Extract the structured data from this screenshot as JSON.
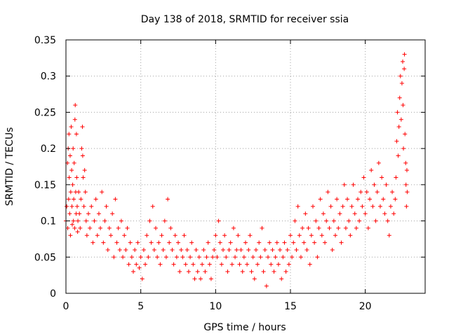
{
  "chart_data": {
    "type": "scatter",
    "title": "Day 138 of 2018, SRMTID for receiver ssia",
    "xlabel": "GPS time / hours",
    "ylabel": "SRMTID / TECUs",
    "xlim": [
      0,
      24
    ],
    "ylim": [
      0,
      0.35
    ],
    "x_ticks": [
      0,
      5,
      10,
      15,
      20
    ],
    "x_tick_labels": [
      "0",
      "5",
      "10",
      "15",
      "20"
    ],
    "y_ticks": [
      0,
      0.05,
      0.1,
      0.15,
      0.2,
      0.25,
      0.3,
      0.35
    ],
    "y_tick_labels": [
      "0",
      "0.05",
      "0.1",
      "0.15",
      "0.2",
      "0.25",
      "0.3",
      "0.35"
    ],
    "grid": true,
    "marker": "+",
    "color": "#ff0000",
    "series": [
      {
        "name": "SRMTID",
        "points": [
          [
            0.0,
            0.1
          ],
          [
            0.05,
            0.12
          ],
          [
            0.1,
            0.18
          ],
          [
            0.12,
            0.09
          ],
          [
            0.15,
            0.2
          ],
          [
            0.18,
            0.13
          ],
          [
            0.2,
            0.22
          ],
          [
            0.22,
            0.16
          ],
          [
            0.25,
            0.11
          ],
          [
            0.28,
            0.19
          ],
          [
            0.3,
            0.08
          ],
          [
            0.32,
            0.14
          ],
          [
            0.35,
            0.23
          ],
          [
            0.38,
            0.17
          ],
          [
            0.4,
            0.12
          ],
          [
            0.42,
            0.095
          ],
          [
            0.45,
            0.15
          ],
          [
            0.48,
            0.2
          ],
          [
            0.5,
            0.1
          ],
          [
            0.52,
            0.13
          ],
          [
            0.55,
            0.18
          ],
          [
            0.58,
            0.09
          ],
          [
            0.6,
            0.24
          ],
          [
            0.62,
            0.26
          ],
          [
            0.65,
            0.14
          ],
          [
            0.68,
            0.11
          ],
          [
            0.7,
            0.22
          ],
          [
            0.72,
            0.16
          ],
          [
            0.75,
            0.12
          ],
          [
            0.78,
            0.085
          ],
          [
            0.8,
            0.1
          ],
          [
            0.85,
            0.14
          ],
          [
            0.9,
            0.11
          ],
          [
            0.95,
            0.09
          ],
          [
            1.0,
            0.13
          ],
          [
            1.05,
            0.2
          ],
          [
            1.1,
            0.23
          ],
          [
            1.12,
            0.19
          ],
          [
            1.15,
            0.16
          ],
          [
            1.2,
            0.12
          ],
          [
            1.25,
            0.17
          ],
          [
            1.3,
            0.14
          ],
          [
            1.35,
            0.1
          ],
          [
            1.4,
            0.08
          ],
          [
            1.5,
            0.11
          ],
          [
            1.6,
            0.09
          ],
          [
            1.7,
            0.12
          ],
          [
            1.8,
            0.07
          ],
          [
            1.9,
            0.1
          ],
          [
            2.0,
            0.13
          ],
          [
            2.1,
            0.08
          ],
          [
            2.2,
            0.11
          ],
          [
            2.3,
            0.09
          ],
          [
            2.4,
            0.14
          ],
          [
            2.5,
            0.07
          ],
          [
            2.6,
            0.1
          ],
          [
            2.7,
            0.12
          ],
          [
            2.8,
            0.06
          ],
          [
            2.9,
            0.09
          ],
          [
            3.0,
            0.08
          ],
          [
            3.1,
            0.11
          ],
          [
            3.2,
            0.05
          ],
          [
            3.3,
            0.13
          ],
          [
            3.4,
            0.07
          ],
          [
            3.5,
            0.09
          ],
          [
            3.6,
            0.06
          ],
          [
            3.7,
            0.1
          ],
          [
            3.8,
            0.05
          ],
          [
            3.9,
            0.08
          ],
          [
            4.0,
            0.06
          ],
          [
            4.1,
            0.09
          ],
          [
            4.2,
            0.04
          ],
          [
            4.3,
            0.07
          ],
          [
            4.4,
            0.05
          ],
          [
            4.5,
            0.03
          ],
          [
            4.6,
            0.06
          ],
          [
            4.7,
            0.04
          ],
          [
            4.8,
            0.07
          ],
          [
            4.9,
            0.035
          ],
          [
            5.0,
            0.05
          ],
          [
            5.1,
            0.02
          ],
          [
            5.2,
            0.06
          ],
          [
            5.3,
            0.04
          ],
          [
            5.4,
            0.08
          ],
          [
            5.5,
            0.05
          ],
          [
            5.6,
            0.1
          ],
          [
            5.7,
            0.07
          ],
          [
            5.8,
            0.12
          ],
          [
            5.9,
            0.06
          ],
          [
            6.0,
            0.09
          ],
          [
            6.1,
            0.05
          ],
          [
            6.2,
            0.07
          ],
          [
            6.3,
            0.04
          ],
          [
            6.4,
            0.08
          ],
          [
            6.5,
            0.06
          ],
          [
            6.6,
            0.1
          ],
          [
            6.7,
            0.05
          ],
          [
            6.8,
            0.13
          ],
          [
            6.9,
            0.07
          ],
          [
            7.0,
            0.09
          ],
          [
            7.1,
            0.06
          ],
          [
            7.2,
            0.04
          ],
          [
            7.3,
            0.08
          ],
          [
            7.4,
            0.05
          ],
          [
            7.5,
            0.07
          ],
          [
            7.6,
            0.03
          ],
          [
            7.7,
            0.06
          ],
          [
            7.8,
            0.05
          ],
          [
            7.9,
            0.08
          ],
          [
            8.0,
            0.04
          ],
          [
            8.1,
            0.06
          ],
          [
            8.2,
            0.03
          ],
          [
            8.3,
            0.05
          ],
          [
            8.4,
            0.07
          ],
          [
            8.5,
            0.04
          ],
          [
            8.6,
            0.02
          ],
          [
            8.7,
            0.06
          ],
          [
            8.8,
            0.03
          ],
          [
            8.9,
            0.05
          ],
          [
            9.0,
            0.02
          ],
          [
            9.1,
            0.04
          ],
          [
            9.2,
            0.06
          ],
          [
            9.3,
            0.03
          ],
          [
            9.4,
            0.05
          ],
          [
            9.5,
            0.07
          ],
          [
            9.6,
            0.04
          ],
          [
            9.7,
            0.02
          ],
          [
            9.8,
            0.05
          ],
          [
            9.9,
            0.06
          ],
          [
            10.0,
            0.08
          ],
          [
            10.1,
            0.05
          ],
          [
            10.2,
            0.1
          ],
          [
            10.3,
            0.07
          ],
          [
            10.4,
            0.04
          ],
          [
            10.5,
            0.06
          ],
          [
            10.6,
            0.08
          ],
          [
            10.7,
            0.05
          ],
          [
            10.8,
            0.03
          ],
          [
            10.9,
            0.06
          ],
          [
            11.0,
            0.07
          ],
          [
            11.1,
            0.04
          ],
          [
            11.2,
            0.09
          ],
          [
            11.3,
            0.05
          ],
          [
            11.4,
            0.06
          ],
          [
            11.5,
            0.08
          ],
          [
            11.6,
            0.04
          ],
          [
            11.7,
            0.06
          ],
          [
            11.8,
            0.03
          ],
          [
            11.9,
            0.05
          ],
          [
            12.0,
            0.07
          ],
          [
            12.1,
            0.04
          ],
          [
            12.2,
            0.06
          ],
          [
            12.3,
            0.08
          ],
          [
            12.4,
            0.03
          ],
          [
            12.5,
            0.05
          ],
          [
            12.6,
            0.02
          ],
          [
            12.7,
            0.06
          ],
          [
            12.8,
            0.04
          ],
          [
            12.9,
            0.07
          ],
          [
            13.0,
            0.05
          ],
          [
            13.1,
            0.09
          ],
          [
            13.2,
            0.03
          ],
          [
            13.3,
            0.06
          ],
          [
            13.4,
            0.01
          ],
          [
            13.5,
            0.05
          ],
          [
            13.6,
            0.07
          ],
          [
            13.7,
            0.04
          ],
          [
            13.8,
            0.06
          ],
          [
            13.9,
            0.03
          ],
          [
            14.0,
            0.05
          ],
          [
            14.1,
            0.07
          ],
          [
            14.2,
            0.04
          ],
          [
            14.3,
            0.06
          ],
          [
            14.4,
            0.02
          ],
          [
            14.5,
            0.05
          ],
          [
            14.6,
            0.07
          ],
          [
            14.7,
            0.03
          ],
          [
            14.8,
            0.06
          ],
          [
            14.9,
            0.04
          ],
          [
            15.0,
            0.08
          ],
          [
            15.1,
            0.05
          ],
          [
            15.2,
            0.07
          ],
          [
            15.3,
            0.1
          ],
          [
            15.4,
            0.06
          ],
          [
            15.5,
            0.12
          ],
          [
            15.6,
            0.08
          ],
          [
            15.7,
            0.05
          ],
          [
            15.8,
            0.09
          ],
          [
            15.9,
            0.07
          ],
          [
            16.0,
            0.11
          ],
          [
            16.1,
            0.06
          ],
          [
            16.2,
            0.09
          ],
          [
            16.3,
            0.04
          ],
          [
            16.4,
            0.08
          ],
          [
            16.5,
            0.12
          ],
          [
            16.6,
            0.07
          ],
          [
            16.7,
            0.1
          ],
          [
            16.8,
            0.05
          ],
          [
            16.9,
            0.09
          ],
          [
            17.0,
            0.13
          ],
          [
            17.1,
            0.08
          ],
          [
            17.2,
            0.11
          ],
          [
            17.3,
            0.07
          ],
          [
            17.4,
            0.1
          ],
          [
            17.5,
            0.14
          ],
          [
            17.6,
            0.09
          ],
          [
            17.7,
            0.12
          ],
          [
            17.8,
            0.06
          ],
          [
            17.9,
            0.1
          ],
          [
            18.0,
            0.08
          ],
          [
            18.1,
            0.13
          ],
          [
            18.2,
            0.09
          ],
          [
            18.3,
            0.11
          ],
          [
            18.4,
            0.07
          ],
          [
            18.5,
            0.12
          ],
          [
            18.6,
            0.15
          ],
          [
            18.7,
            0.09
          ],
          [
            18.8,
            0.13
          ],
          [
            18.9,
            0.1
          ],
          [
            19.0,
            0.08
          ],
          [
            19.1,
            0.12
          ],
          [
            19.2,
            0.15
          ],
          [
            19.3,
            0.11
          ],
          [
            19.4,
            0.09
          ],
          [
            19.5,
            0.13
          ],
          [
            19.6,
            0.1
          ],
          [
            19.7,
            0.14
          ],
          [
            19.8,
            0.12
          ],
          [
            19.9,
            0.16
          ],
          [
            20.0,
            0.11
          ],
          [
            20.1,
            0.14
          ],
          [
            20.2,
            0.09
          ],
          [
            20.3,
            0.13
          ],
          [
            20.4,
            0.17
          ],
          [
            20.5,
            0.12
          ],
          [
            20.6,
            0.15
          ],
          [
            20.7,
            0.1
          ],
          [
            20.8,
            0.14
          ],
          [
            20.9,
            0.18
          ],
          [
            21.0,
            0.12
          ],
          [
            21.1,
            0.16
          ],
          [
            21.2,
            0.13
          ],
          [
            21.3,
            0.11
          ],
          [
            21.4,
            0.15
          ],
          [
            21.5,
            0.1
          ],
          [
            21.6,
            0.08
          ],
          [
            21.7,
            0.12
          ],
          [
            21.8,
            0.14
          ],
          [
            21.9,
            0.11
          ],
          [
            22.0,
            0.13
          ],
          [
            22.05,
            0.16
          ],
          [
            22.1,
            0.21
          ],
          [
            22.15,
            0.25
          ],
          [
            22.2,
            0.19
          ],
          [
            22.25,
            0.23
          ],
          [
            22.3,
            0.27
          ],
          [
            22.35,
            0.3
          ],
          [
            22.4,
            0.24
          ],
          [
            22.45,
            0.29
          ],
          [
            22.5,
            0.32
          ],
          [
            22.52,
            0.26
          ],
          [
            22.55,
            0.2
          ],
          [
            22.6,
            0.31
          ],
          [
            22.62,
            0.33
          ],
          [
            22.65,
            0.22
          ],
          [
            22.7,
            0.18
          ],
          [
            22.72,
            0.15
          ],
          [
            22.75,
            0.12
          ],
          [
            22.78,
            0.17
          ],
          [
            22.8,
            0.14
          ]
        ]
      }
    ]
  }
}
